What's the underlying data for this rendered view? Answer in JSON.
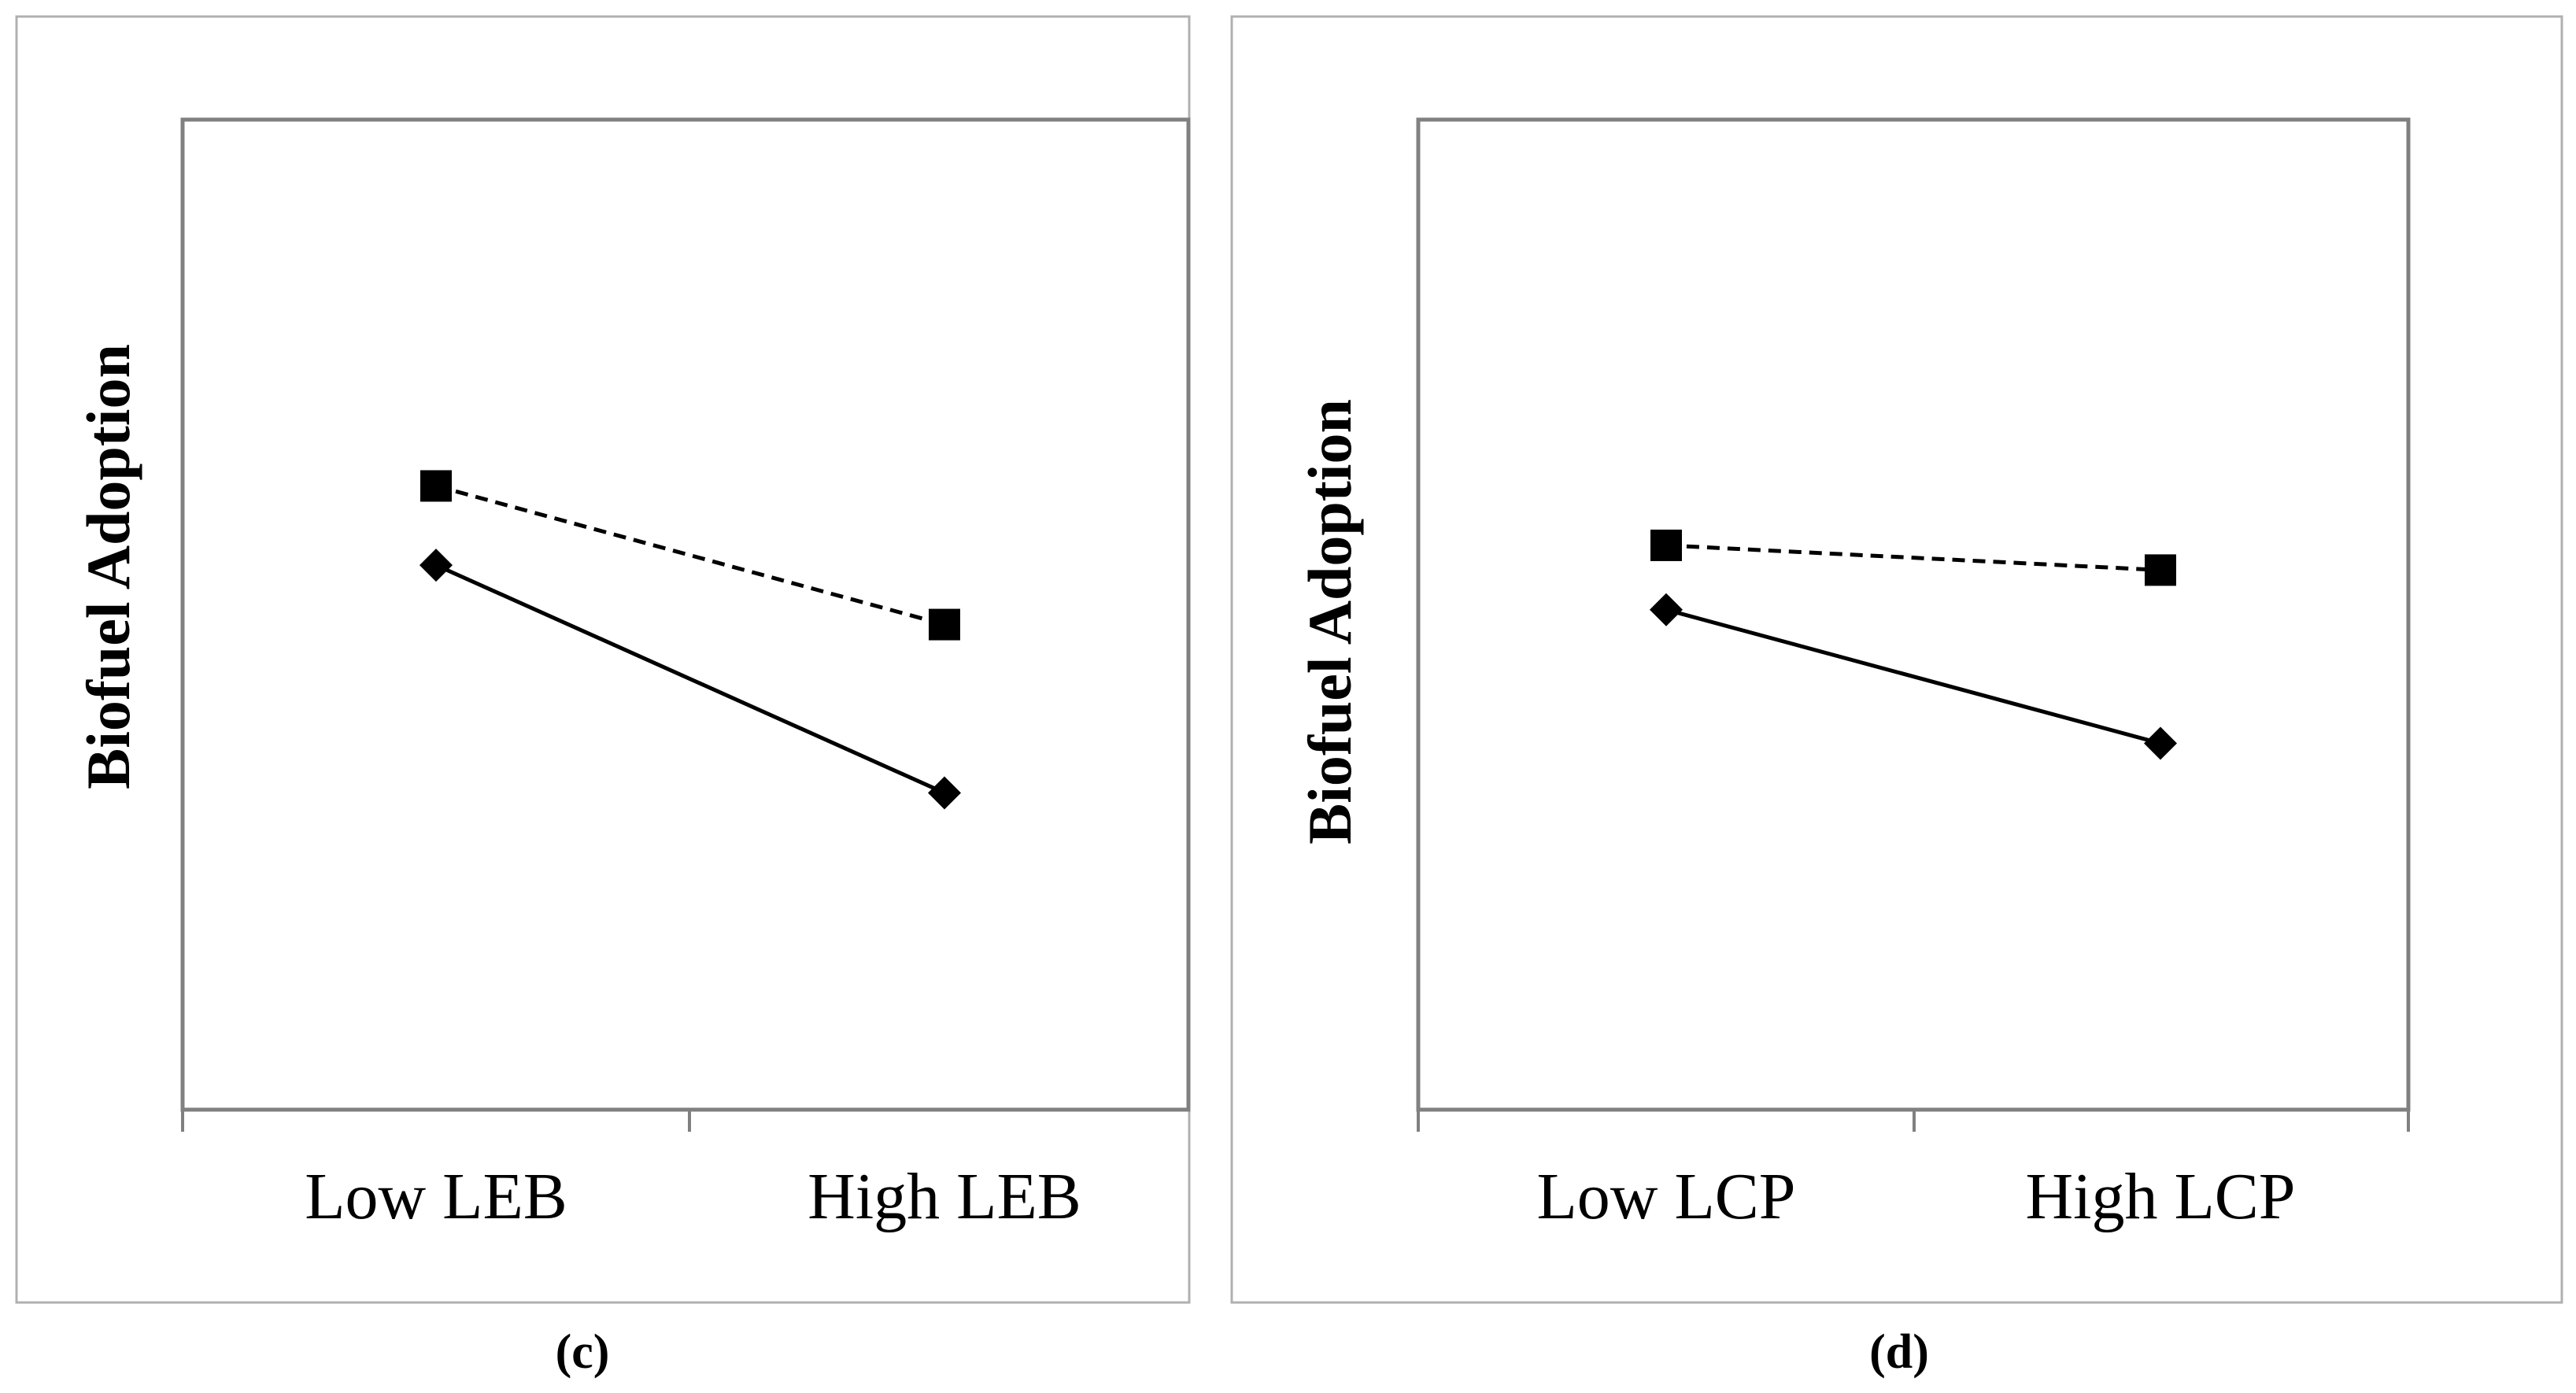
{
  "chart_data": [
    {
      "type": "line",
      "caption": "(c)",
      "ylabel": "Biofuel Adoption",
      "xlabel": "",
      "categories": [
        "Low LEB",
        "High LEB"
      ],
      "ylim": [
        0,
        10
      ],
      "series": [
        {
          "name": "dashed-square",
          "marker": "square",
          "dash": true,
          "values": [
            6.3,
            4.9
          ]
        },
        {
          "name": "solid-diamond",
          "marker": "diamond",
          "dash": false,
          "values": [
            5.5,
            3.2
          ]
        }
      ]
    },
    {
      "type": "line",
      "caption": "(d)",
      "ylabel": "Biofuel Adoption",
      "xlabel": "",
      "categories": [
        "Low LCP",
        "High LCP"
      ],
      "ylim": [
        0,
        10
      ],
      "series": [
        {
          "name": "dashed-square",
          "marker": "square",
          "dash": true,
          "values": [
            5.7,
            5.45
          ]
        },
        {
          "name": "solid-diamond",
          "marker": "diamond",
          "dash": false,
          "values": [
            5.05,
            3.7
          ]
        }
      ]
    }
  ]
}
